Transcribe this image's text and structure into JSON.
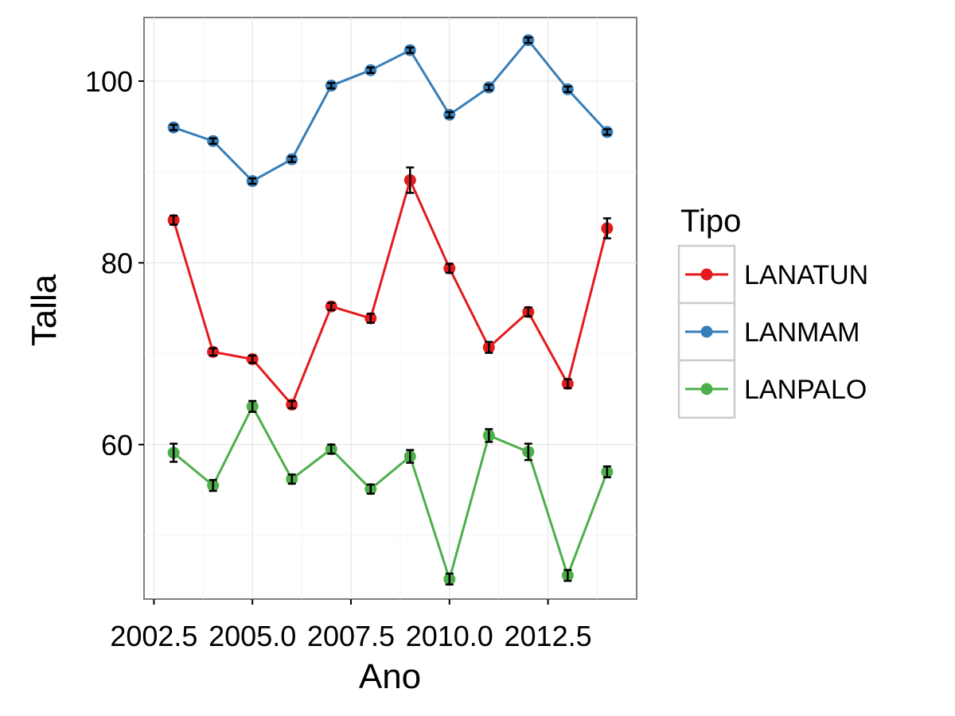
{
  "chart_data": {
    "type": "line",
    "title": "",
    "xlabel": "Ano",
    "ylabel": "Talla",
    "xlim": [
      2002.25,
      2014.75
    ],
    "ylim": [
      43.0,
      107.0
    ],
    "x_ticks": [
      2002.5,
      2005.0,
      2007.5,
      2010.0,
      2012.5
    ],
    "x_tick_labels": [
      "2002.5",
      "2005.0",
      "2007.5",
      "2010.0",
      "2012.5"
    ],
    "y_ticks": [
      60,
      80,
      100
    ],
    "y_tick_labels": [
      "60",
      "80",
      "100"
    ],
    "grid": true,
    "error_bars": true,
    "legend": {
      "title": "Tipo",
      "position": "right",
      "entries": [
        "LANATUN",
        "LANMAM",
        "LANPALO"
      ]
    },
    "x": [
      2003,
      2004,
      2005,
      2006,
      2007,
      2008,
      2009,
      2010,
      2011,
      2012,
      2013,
      2014
    ],
    "series": [
      {
        "name": "LANATUN",
        "color": "#E41A1C",
        "values": [
          84.7,
          70.2,
          69.4,
          64.4,
          75.2,
          73.9,
          89.1,
          79.4,
          70.7,
          74.6,
          66.7,
          83.8
        ],
        "errors": [
          0.5,
          0.4,
          0.4,
          0.4,
          0.4,
          0.5,
          1.4,
          0.5,
          0.6,
          0.5,
          0.5,
          1.1
        ]
      },
      {
        "name": "LANMAM",
        "color": "#377EB8",
        "values": [
          94.9,
          93.4,
          89.0,
          91.4,
          99.5,
          101.2,
          103.4,
          96.3,
          99.3,
          104.5,
          99.1,
          94.4
        ],
        "errors": [
          0.3,
          0.3,
          0.3,
          0.3,
          0.3,
          0.3,
          0.3,
          0.3,
          0.3,
          0.3,
          0.3,
          0.3
        ]
      },
      {
        "name": "LANPALO",
        "color": "#4DAF4A",
        "values": [
          59.1,
          55.5,
          64.2,
          56.2,
          59.5,
          55.1,
          58.7,
          45.2,
          61.0,
          59.2,
          45.6,
          57.0
        ],
        "errors": [
          1.0,
          0.6,
          0.6,
          0.5,
          0.5,
          0.5,
          0.7,
          0.6,
          0.7,
          0.9,
          0.6,
          0.6
        ]
      }
    ]
  }
}
